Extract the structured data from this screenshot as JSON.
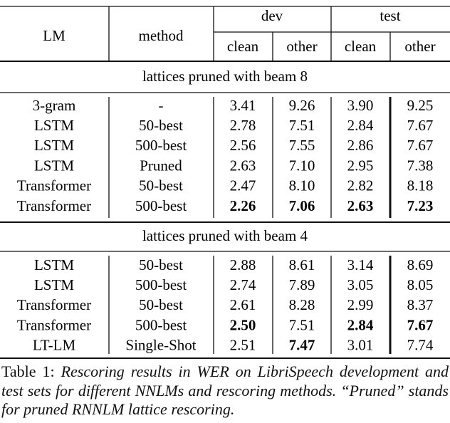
{
  "table": {
    "header": {
      "lm": "LM",
      "method": "method",
      "dev": "dev",
      "test": "test",
      "sub": [
        "clean",
        "other",
        "clean",
        "other"
      ]
    },
    "sections": [
      {
        "label": "lattices pruned with beam 8",
        "rows": [
          [
            "3-gram",
            "-",
            "3.41",
            "9.26",
            "3.90",
            "9.25"
          ],
          [
            "LSTM",
            "50-best",
            "2.78",
            "7.51",
            "2.84",
            "7.67"
          ],
          [
            "LSTM",
            "500-best",
            "2.56",
            "7.55",
            "2.86",
            "7.67"
          ],
          [
            "LSTM",
            "Pruned",
            "2.63",
            "7.10",
            "2.95",
            "7.38"
          ],
          [
            "Transformer",
            "50-best",
            "2.47",
            "8.10",
            "2.82",
            "8.18"
          ],
          [
            "Transformer",
            "500-best",
            {
              "text": "2.26",
              "bold": true
            },
            {
              "text": "7.06",
              "bold": true
            },
            {
              "text": "2.63",
              "bold": true
            },
            {
              "text": "7.23",
              "bold": true
            }
          ]
        ]
      },
      {
        "label": "lattices pruned with beam 4",
        "rows": [
          [
            "LSTM",
            "50-best",
            "2.88",
            "8.61",
            "3.14",
            "8.69"
          ],
          [
            "LSTM",
            "500-best",
            "2.74",
            "7.89",
            "3.05",
            "8.05"
          ],
          [
            "Transformer",
            "50-best",
            "2.61",
            "8.28",
            "2.99",
            "8.37"
          ],
          [
            "Transformer",
            "500-best",
            {
              "text": "2.50",
              "bold": true
            },
            "7.51",
            {
              "text": "2.84",
              "bold": true
            },
            {
              "text": "7.67",
              "bold": true
            }
          ],
          [
            "LT-LM",
            "Single-Shot",
            "2.51",
            {
              "text": "7.47",
              "bold": true
            },
            "3.01",
            "7.74"
          ]
        ]
      }
    ]
  },
  "caption": {
    "label": "Table 1:",
    "text": "Rescoring results in WER on LibriSpeech development and test sets for different NNLMs and rescoring methods. “Pruned” stands for pruned RNNLM lattice rescoring."
  }
}
